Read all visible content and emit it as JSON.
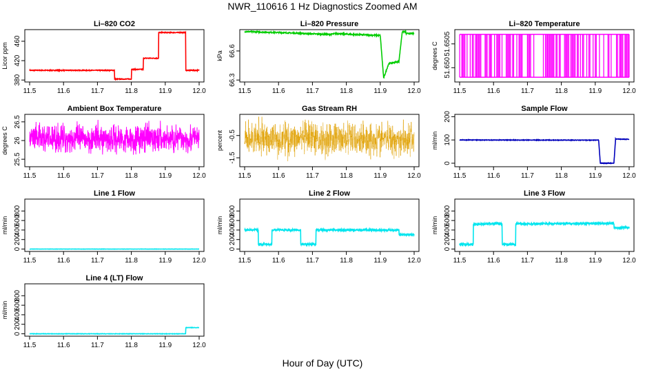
{
  "figure": {
    "title": "NWR_110616  1 Hz Diagnostics Zoomed AM",
    "xlabel": "Hour of Day (UTC)"
  },
  "chart_data": [
    {
      "type": "line",
      "title": "Li–820 CO2",
      "ylabel": "Licor ppm",
      "color": "#ff0000",
      "xlim": [
        11.5,
        12.0
      ],
      "ylim": [
        376,
        484
      ],
      "x_ticks": [
        11.5,
        11.6,
        11.7,
        11.8,
        11.9,
        12.0
      ],
      "y_ticks": [
        "380",
        "420",
        "460"
      ],
      "steps": [
        [
          11.5,
          12.0,
          400
        ]
      ],
      "segments": [
        [
          11.5,
          400
        ],
        [
          11.75,
          400
        ],
        [
          11.75,
          382
        ],
        [
          11.8,
          382
        ],
        [
          11.8,
          402
        ],
        [
          11.835,
          402
        ],
        [
          11.835,
          425
        ],
        [
          11.88,
          425
        ],
        [
          11.88,
          478
        ],
        [
          11.96,
          478
        ],
        [
          11.96,
          400
        ],
        [
          12.0,
          400
        ]
      ],
      "noise": 0.8
    },
    {
      "type": "line",
      "title": "Li–820 Pressure",
      "ylabel": "kPa",
      "color": "#00cc00",
      "xlim": [
        11.5,
        12.0
      ],
      "ylim": [
        66.28,
        66.82
      ],
      "x_ticks": [
        11.5,
        11.6,
        11.7,
        11.8,
        11.9,
        12.0
      ],
      "y_ticks": [
        "66.3",
        "66.6"
      ],
      "segments": [
        [
          11.5,
          66.8
        ],
        [
          11.6,
          66.79
        ],
        [
          11.75,
          66.77
        ],
        [
          11.77,
          66.78
        ],
        [
          11.82,
          66.77
        ],
        [
          11.9,
          66.76
        ],
        [
          11.91,
          66.32
        ],
        [
          11.925,
          66.47
        ],
        [
          11.955,
          66.49
        ],
        [
          11.965,
          66.8
        ],
        [
          11.975,
          66.8
        ],
        [
          11.975,
          66.78
        ],
        [
          12.0,
          66.78
        ]
      ],
      "noise": 0.006
    },
    {
      "type": "line",
      "title": "Li–820 Temperature",
      "ylabel": "degrees C",
      "color": "#ff00ff",
      "xlim": [
        11.5,
        12.0
      ],
      "ylim": [
        51.6497,
        51.6508
      ],
      "x_ticks": [
        11.5,
        11.6,
        11.7,
        11.8,
        11.9,
        12.0
      ],
      "y_ticks": [
        "51.650",
        "51.6505"
      ],
      "pattern": "toggle",
      "low": 51.6498,
      "high": 51.6507
    },
    {
      "type": "line",
      "title": "Ambient Box Temperature",
      "ylabel": "degrees C",
      "color": "#ff00ff",
      "xlim": [
        11.5,
        12.0
      ],
      "ylim": [
        25.3,
        26.7
      ],
      "x_ticks": [
        11.5,
        11.6,
        11.7,
        11.8,
        11.9,
        12.0
      ],
      "y_ticks": [
        "25.5",
        "26",
        "26.5"
      ],
      "pattern": "dense-noise",
      "center": 26.05,
      "spread": 0.55
    },
    {
      "type": "scatter",
      "title": "Gas Stream RH",
      "ylabel": "percent",
      "color": "#e0a000",
      "xlim": [
        11.5,
        12.0
      ],
      "ylim": [
        -1.9,
        0.45
      ],
      "x_ticks": [
        11.5,
        11.6,
        11.7,
        11.8,
        11.9,
        12.0
      ],
      "y_ticks": [
        "-1.5",
        "-0.5"
      ],
      "pattern": "dense-noise",
      "center": -0.65,
      "spread": 1.1
    },
    {
      "type": "line",
      "title": "Sample Flow",
      "ylabel": "ml/min",
      "color": "#0000bb",
      "xlim": [
        11.5,
        12.0
      ],
      "ylim": [
        -15,
        210
      ],
      "x_ticks": [
        11.5,
        11.6,
        11.7,
        11.8,
        11.9,
        12.0
      ],
      "y_ticks": [
        "0",
        "100",
        "200"
      ],
      "segments": [
        [
          11.5,
          100
        ],
        [
          11.91,
          99
        ],
        [
          11.915,
          0
        ],
        [
          11.955,
          0
        ],
        [
          11.96,
          104
        ],
        [
          12.0,
          103
        ]
      ],
      "noise": 1.2
    },
    {
      "type": "line",
      "title": "Line 1 Flow",
      "ylabel": "ml/min",
      "color": "#00e5ee",
      "xlim": [
        11.5,
        12.0
      ],
      "ylim": [
        -50,
        1050
      ],
      "x_ticks": [
        11.5,
        11.6,
        11.7,
        11.8,
        11.9,
        12.0
      ],
      "y_ticks": [
        "0",
        "200",
        "400",
        "600",
        "800"
      ],
      "segments": [
        [
          11.5,
          0
        ],
        [
          12.0,
          0
        ]
      ],
      "noise": 2
    },
    {
      "type": "line",
      "title": "Line 2 Flow",
      "ylabel": "ml/min",
      "color": "#00e5ee",
      "xlim": [
        11.5,
        12.0
      ],
      "ylim": [
        -50,
        1050
      ],
      "x_ticks": [
        11.5,
        11.6,
        11.7,
        11.8,
        11.9,
        12.0
      ],
      "y_ticks": [
        "0",
        "200",
        "400",
        "600",
        "800"
      ],
      "segments": [
        [
          11.5,
          400
        ],
        [
          11.54,
          400
        ],
        [
          11.54,
          100
        ],
        [
          11.58,
          100
        ],
        [
          11.58,
          400
        ],
        [
          11.665,
          400
        ],
        [
          11.665,
          100
        ],
        [
          11.71,
          100
        ],
        [
          11.71,
          400
        ],
        [
          11.955,
          400
        ],
        [
          11.955,
          300
        ],
        [
          12.0,
          300
        ]
      ],
      "noise": 20
    },
    {
      "type": "line",
      "title": "Line 3 Flow",
      "ylabel": "ml/min",
      "color": "#00e5ee",
      "xlim": [
        11.5,
        12.0
      ],
      "ylim": [
        -50,
        1050
      ],
      "x_ticks": [
        11.5,
        11.6,
        11.7,
        11.8,
        11.9,
        12.0
      ],
      "y_ticks": [
        "0",
        "200",
        "400",
        "600",
        "800"
      ],
      "segments": [
        [
          11.5,
          100
        ],
        [
          11.54,
          100
        ],
        [
          11.54,
          520
        ],
        [
          11.625,
          540
        ],
        [
          11.625,
          100
        ],
        [
          11.665,
          100
        ],
        [
          11.665,
          530
        ],
        [
          11.955,
          540
        ],
        [
          11.955,
          450
        ],
        [
          12.0,
          450
        ]
      ],
      "noise": 20
    },
    {
      "type": "line",
      "title": "Line 4 (LT) Flow",
      "ylabel": "ml/min",
      "color": "#00e5ee",
      "xlim": [
        11.5,
        12.0
      ],
      "ylim": [
        -50,
        1050
      ],
      "x_ticks": [
        11.5,
        11.6,
        11.7,
        11.8,
        11.9,
        12.0
      ],
      "y_ticks": [
        "0",
        "200",
        "400",
        "600",
        "800"
      ],
      "segments": [
        [
          11.5,
          0
        ],
        [
          11.96,
          0
        ],
        [
          11.96,
          130
        ],
        [
          12.0,
          130
        ]
      ],
      "noise": 4
    }
  ]
}
